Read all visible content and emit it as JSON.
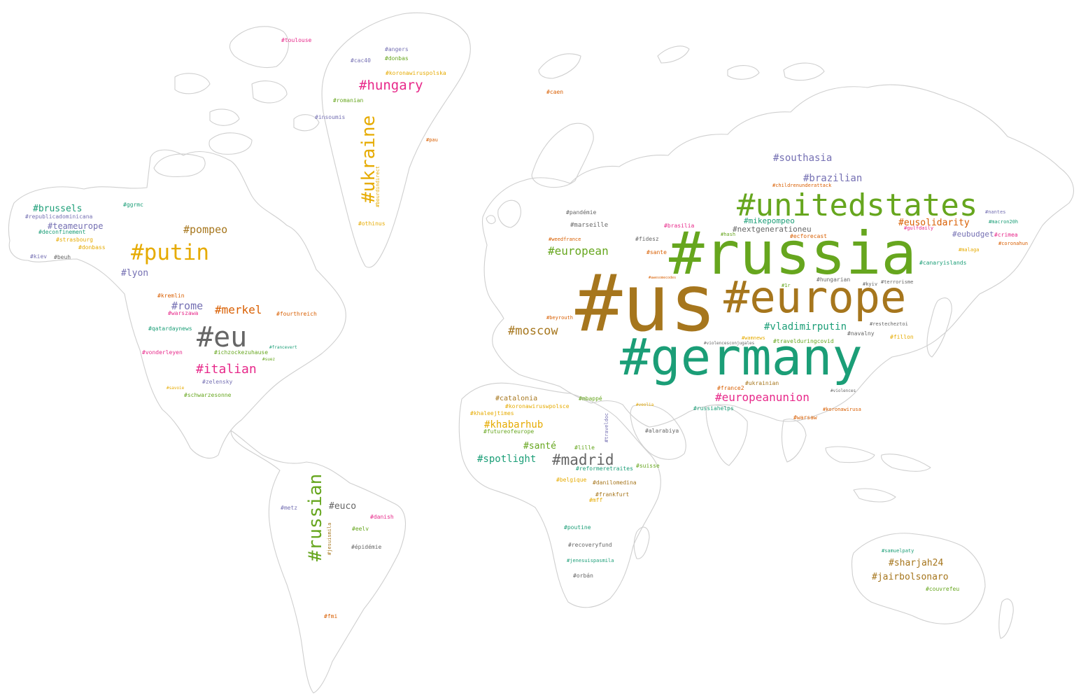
{
  "colors": {
    "green": "#66a61e",
    "brown": "#a6761d",
    "teal": "#1b9e77",
    "pink": "#e7298a",
    "purple": "#7570b3",
    "gold": "#e6ab02",
    "orange": "#d95f02",
    "gray": "#666666",
    "map_outline": "#cfcfcf"
  },
  "hashtags": [
    "#us",
    "#russia",
    "#germany",
    "#europe",
    "#unitedstates",
    "#putin",
    "#eu",
    "#ukraine",
    "#russian",
    "#hungary",
    "#madrid",
    "#italian",
    "#merkel",
    "#pompeo",
    "#moscow",
    "#europeanunion",
    "#european",
    "#spotlight",
    "#khabarhub",
    "#vladimirputin",
    "#brazilian",
    "#southasia",
    "#rome",
    "#lyon",
    "#brussels",
    "#teameurope",
    "#eusolidarity",
    "#sharjah24",
    "#jairbolsonaro",
    "#santé",
    "#euco",
    "#mikepompeo",
    "#nextgenerationeu",
    "#eubudget",
    "#catalonia",
    "#pandémie",
    "#marseille",
    "#kremlin",
    "#warszawa",
    "#fourthreich",
    "#qatardaynews",
    "#ichzockezuhause",
    "#vonderleyen",
    "#zelensky",
    "#schwarzesonne",
    "#savoie",
    "#francevert",
    "#suez",
    "#republicadominicana",
    "#deconfinement",
    "#strasbourg",
    "#donbass",
    "#kiev",
    "#beuh",
    "#ggrmc",
    "#toulouse",
    "#angers",
    "#cac40",
    "#donbas",
    "#koronawiruspolska",
    "#romanian",
    "#insoumis",
    "#pau",
    "#bourdindirect",
    "#othinus",
    "#caen",
    "#childrenunderattack",
    "#nantes",
    "#macron20h",
    "#gulfdaily",
    "#crimea",
    "#coronahun",
    "#brasilia",
    "#hash",
    "#ecforecast",
    "#fidesz",
    "#weedfrance",
    "#sante",
    "#malaga",
    "#canaryislands",
    "#hungarian",
    "#1r",
    "#kyiv",
    "#terrorisme",
    "#beyrouth",
    "#awesomecodes",
    "#restecheztoi",
    "#navalny",
    "#wamnews",
    "#violencesconjugales",
    "#travelduringcovid",
    "#fillon",
    "#france2",
    "#ukrainian",
    "#violences",
    "#mbappé",
    "#koronawiruswpolsce",
    "#khaleejtimes",
    "#traveldoc",
    "#veolia",
    "#russiahelps",
    "#koronawirusa",
    "#warsaw",
    "#futureofeurope",
    "#alarabiya",
    "#lille",
    "#reformeretraites",
    "#suisse",
    "#belgique",
    "#danilomedina",
    "#frankfurt",
    "#mff",
    "#poutine",
    "#recoveryfund",
    "#jenesuispasmila",
    "#orbán",
    "#samuelpaty",
    "#couvrefeu",
    "#metz",
    "#danish",
    "#eelv",
    "#jesuismila",
    "#épidémie",
    "#fmi"
  ]
}
